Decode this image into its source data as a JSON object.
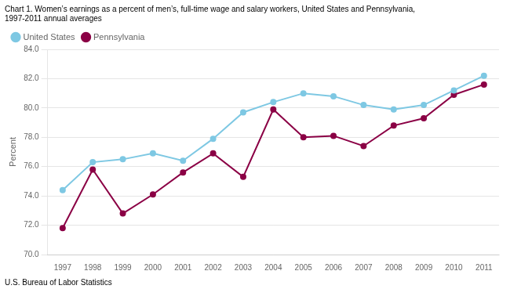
{
  "chart_data": {
    "type": "line",
    "title": [
      "Chart 1. Women’s earnings as a percent of men’s, full-time wage and salary workers, United States and Pennsylvania,",
      "1997-2011 annual averages"
    ],
    "ylabel": "Percent",
    "footer": "U.S. Bureau of Labor Statistics",
    "x": [
      1997,
      1998,
      1999,
      2000,
      2001,
      2002,
      2003,
      2004,
      2005,
      2006,
      2007,
      2008,
      2009,
      2010,
      2011
    ],
    "series": [
      {
        "name": "United States",
        "color": "#7ec8e3",
        "marker": "circle",
        "values": [
          74.4,
          76.3,
          76.5,
          76.9,
          76.4,
          77.9,
          79.7,
          80.4,
          81.0,
          80.8,
          80.2,
          79.9,
          80.2,
          81.2,
          82.2
        ]
      },
      {
        "name": "Pennsylvania",
        "color": "#8b0045",
        "marker": "circle",
        "values": [
          71.8,
          75.8,
          72.8,
          74.1,
          75.6,
          76.9,
          75.3,
          79.9,
          78.0,
          78.1,
          77.4,
          78.8,
          79.3,
          80.9,
          81.6
        ]
      }
    ],
    "xlim": [
      1996.5,
      2011.5
    ],
    "xticks": [
      1997,
      1998,
      1999,
      2000,
      2001,
      2002,
      2003,
      2004,
      2005,
      2006,
      2007,
      2008,
      2009,
      2010,
      2011
    ],
    "ylim": [
      70.0,
      84.0
    ],
    "yticks": [
      {
        "value": 70.0,
        "label": "70.0"
      },
      {
        "value": 72.0,
        "label": "72.0"
      },
      {
        "value": 74.0,
        "label": "74.0"
      },
      {
        "value": 76.0,
        "label": "76.0"
      },
      {
        "value": 78.0,
        "label": "78.0"
      },
      {
        "value": 80.0,
        "label": "80.0"
      },
      {
        "value": 82.0,
        "label": "82.0"
      },
      {
        "value": 84.0,
        "label": "84.0"
      }
    ],
    "grid": true,
    "legend": "upper left"
  }
}
